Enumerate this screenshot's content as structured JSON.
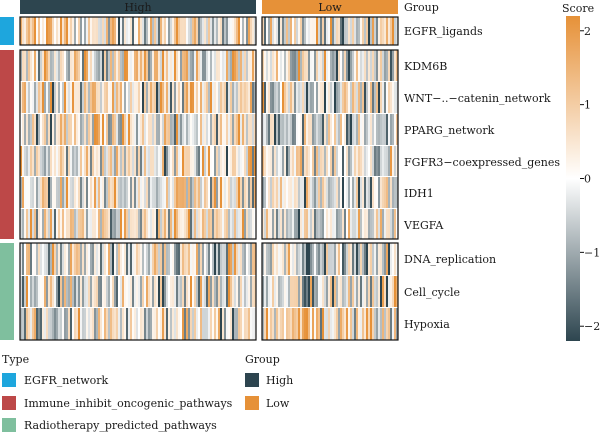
{
  "chart_data": {
    "type": "heatmap",
    "group_annotation": {
      "title": "Group",
      "levels": [
        {
          "name": "High",
          "color": "#2d454f"
        },
        {
          "name": "Low",
          "color": "#e69138"
        }
      ]
    },
    "rows": [
      {
        "label": "EGFR_ligands",
        "type": "EGFR_network"
      },
      {
        "label": "KDM6B",
        "type": "Immune_inhibit_oncogenic_pathways"
      },
      {
        "label": "WNT−..−catenin_network",
        "type": "Immune_inhibit_oncogenic_pathways"
      },
      {
        "label": "PPARG_network",
        "type": "Immune_inhibit_oncogenic_pathways"
      },
      {
        "label": "FGFR3−coexpressed_genes",
        "type": "Immune_inhibit_oncogenic_pathways"
      },
      {
        "label": "IDH1",
        "type": "Immune_inhibit_oncogenic_pathways"
      },
      {
        "label": "VEGFA",
        "type": "Immune_inhibit_oncogenic_pathways"
      },
      {
        "label": "DNA_replication",
        "type": "Radiotherapy_predicted_pathways"
      },
      {
        "label": "Cell_cycle",
        "type": "Radiotherapy_predicted_pathways"
      },
      {
        "label": "Hypoxia",
        "type": "Radiotherapy_predicted_pathways"
      }
    ],
    "type_legend": {
      "title": "Type",
      "items": [
        {
          "name": "EGFR_network",
          "color": "#1ea6dd"
        },
        {
          "name": "Immune_inhibit_oncogenic_pathways",
          "color": "#bd4848"
        },
        {
          "name": "Radiotherapy_predicted_pathways",
          "color": "#7fbf9e"
        }
      ]
    },
    "colorbar": {
      "title": "Score",
      "range": [
        -2.2,
        2.2
      ],
      "ticks": [
        2,
        1,
        0,
        -1,
        -2
      ],
      "tick_labels": [
        "2",
        "1",
        "0",
        "−1",
        "−2"
      ],
      "colors": {
        "low": "#2d454f",
        "mid": "#ffffff",
        "high": "#e69138"
      }
    }
  }
}
